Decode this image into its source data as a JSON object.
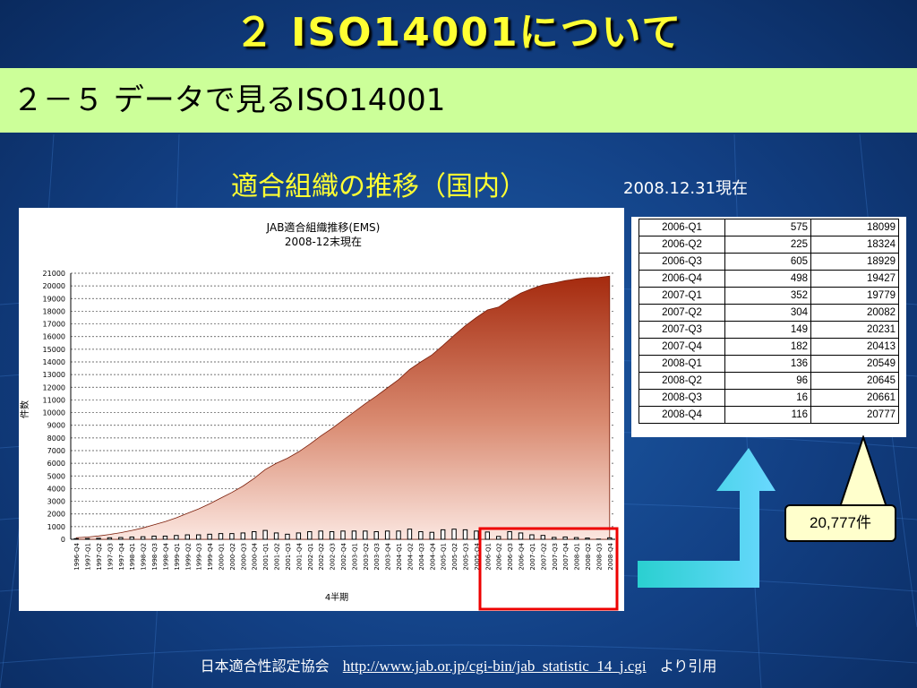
{
  "slide": {
    "title": "２ ISO14001について",
    "subtitle": "２－５ データで見るISO14001",
    "chart_heading": "適合組織の推移（国内）",
    "as_of": "2008.12.31現在",
    "callout": "20,777件",
    "footer": {
      "source_org": "日本適合性認定協会",
      "source_url": "http://www.jab.or.jp/cgi-bin/jab_statistic_14_j.cgi",
      "suffix": "より引用"
    },
    "colors": {
      "title": "#ffff33",
      "subtitle_bar": "#ccff99",
      "arrow": "#33ccff",
      "highlight": "#ee0000"
    }
  },
  "table": {
    "rows": [
      [
        "2006-Q1",
        "575",
        "18099"
      ],
      [
        "2006-Q2",
        "225",
        "18324"
      ],
      [
        "2006-Q3",
        "605",
        "18929"
      ],
      [
        "2006-Q4",
        "498",
        "19427"
      ],
      [
        "2007-Q1",
        "352",
        "19779"
      ],
      [
        "2007-Q2",
        "304",
        "20082"
      ],
      [
        "2007-Q3",
        "149",
        "20231"
      ],
      [
        "2007-Q4",
        "182",
        "20413"
      ],
      [
        "2008-Q1",
        "136",
        "20549"
      ],
      [
        "2008-Q2",
        "96",
        "20645"
      ],
      [
        "2008-Q3",
        "16",
        "20661"
      ],
      [
        "2008-Q4",
        "116",
        "20777"
      ]
    ]
  },
  "chart_data": {
    "type": "area",
    "title": "JAB適合組織推移(EMS)",
    "subtitle": "2008-12末現在",
    "xlabel": "4半期",
    "ylabel": "件数",
    "ylim": [
      0,
      21000
    ],
    "y_ticks": [
      0,
      1000,
      2000,
      3000,
      4000,
      5000,
      6000,
      7000,
      8000,
      9000,
      10000,
      11000,
      12000,
      13000,
      14000,
      15000,
      16000,
      17000,
      18000,
      19000,
      20000,
      21000
    ],
    "grid": true,
    "categories": [
      "1996-Q4",
      "1997-Q1",
      "1997-Q2",
      "1997-Q3",
      "1997-Q4",
      "1998-Q1",
      "1998-Q2",
      "1998-Q3",
      "1998-Q4",
      "1999-Q1",
      "1999-Q2",
      "1999-Q3",
      "1999-Q4",
      "2000-Q1",
      "2000-Q2",
      "2000-Q3",
      "2000-Q4",
      "2001-Q1",
      "2001-Q2",
      "2001-Q3",
      "2001-Q4",
      "2002-Q1",
      "2002-Q2",
      "2002-Q3",
      "2002-Q4",
      "2003-Q1",
      "2003-Q2",
      "2003-Q3",
      "2003-Q4",
      "2004-Q1",
      "2004-Q2",
      "2004-Q3",
      "2004-Q4",
      "2005-Q1",
      "2005-Q2",
      "2005-Q3",
      "2005-Q4",
      "2006-Q1",
      "2006-Q2",
      "2006-Q3",
      "2006-Q4",
      "2007-Q1",
      "2007-Q2",
      "2007-Q3",
      "2007-Q4",
      "2008-Q1",
      "2008-Q2",
      "2008-Q3",
      "2008-Q4"
    ],
    "series": [
      {
        "values": [
          130,
          180,
          260,
          380,
          520,
          700,
          900,
          1150,
          1400,
          1700,
          2050,
          2400,
          2800,
          3250,
          3700,
          4200,
          4800,
          5500,
          6000,
          6400,
          6900,
          7500,
          8150,
          8750,
          9400,
          10050,
          10700,
          11300,
          11950,
          12600,
          13400,
          14000,
          14550,
          15300,
          16100,
          16850,
          17500,
          18099,
          18324,
          18929,
          19427,
          19779,
          20082,
          20231,
          20413,
          20549,
          20645,
          20661,
          20777
        ]
      },
      {
        "values": [
          50,
          60,
          80,
          120,
          140,
          180,
          200,
          250,
          250,
          300,
          350,
          350,
          400,
          450,
          450,
          500,
          600,
          700,
          500,
          400,
          500,
          600,
          650,
          600,
          650,
          650,
          650,
          600,
          650,
          650,
          800,
          600,
          550,
          750,
          800,
          750,
          650,
          575,
          225,
          605,
          498,
          352,
          304,
          149,
          182,
          136,
          96,
          16,
          116
        ]
      }
    ]
  }
}
